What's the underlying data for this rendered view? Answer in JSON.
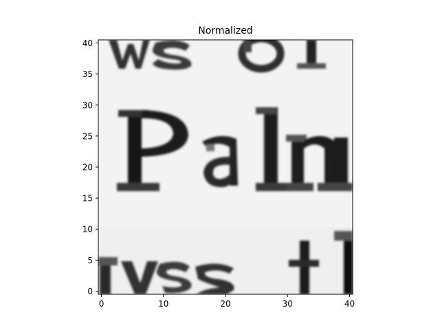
{
  "figure": {
    "background": "#ffffff"
  },
  "chart_data": {
    "type": "heatmap",
    "title": "Normalized",
    "xlabel": "",
    "ylabel": "",
    "xlim": [
      -0.5,
      40.5
    ],
    "ylim": [
      40.5,
      -0.5
    ],
    "x_ticks": [
      0,
      10,
      20,
      30,
      40
    ],
    "y_ticks": [
      0,
      5,
      10,
      15,
      20,
      25,
      30,
      35,
      40
    ],
    "colormap": "gray",
    "grid": false,
    "image_description": "grayscale scanned text crop showing the word 'Paln' in the middle, partial letters 'ws' 'ol' at the top and 'nys' 't' at the bottom",
    "highlight_box": {
      "color": "#e8242b",
      "x0": 15,
      "y0": 15,
      "x1": 24,
      "y1": 24
    }
  }
}
